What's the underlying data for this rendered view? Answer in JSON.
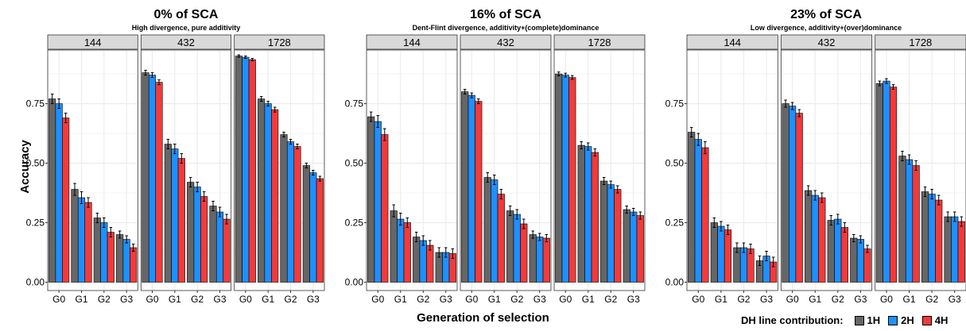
{
  "chart_data": [
    {
      "type": "bar",
      "title": "0% of SCA",
      "subtitle": "High divergence, pure additivity",
      "facets": [
        {
          "label": "144",
          "categories": [
            "G0",
            "G1",
            "G2",
            "G3"
          ],
          "series": [
            {
              "name": "1H",
              "values": [
                0.77,
                0.39,
                0.27,
                0.2
              ],
              "errors": [
                0.02,
                0.025,
                0.02,
                0.015
              ]
            },
            {
              "name": "2H",
              "values": [
                0.75,
                0.355,
                0.25,
                0.18
              ],
              "errors": [
                0.02,
                0.025,
                0.02,
                0.015
              ]
            },
            {
              "name": "4H",
              "values": [
                0.69,
                0.335,
                0.21,
                0.145
              ],
              "errors": [
                0.02,
                0.02,
                0.02,
                0.015
              ]
            }
          ]
        },
        {
          "label": "432",
          "categories": [
            "G0",
            "G1",
            "G2",
            "G3"
          ],
          "series": [
            {
              "name": "1H",
              "values": [
                0.88,
                0.58,
                0.42,
                0.32
              ],
              "errors": [
                0.01,
                0.02,
                0.02,
                0.02
              ]
            },
            {
              "name": "2H",
              "values": [
                0.87,
                0.56,
                0.4,
                0.295
              ],
              "errors": [
                0.01,
                0.02,
                0.02,
                0.02
              ]
            },
            {
              "name": "4H",
              "values": [
                0.84,
                0.52,
                0.36,
                0.265
              ],
              "errors": [
                0.01,
                0.02,
                0.02,
                0.02
              ]
            }
          ]
        },
        {
          "label": "1728",
          "categories": [
            "G0",
            "G1",
            "G2",
            "G3"
          ],
          "series": [
            {
              "name": "1H",
              "values": [
                0.95,
                0.77,
                0.62,
                0.49
              ],
              "errors": [
                0.005,
                0.01,
                0.01,
                0.01
              ]
            },
            {
              "name": "2H",
              "values": [
                0.945,
                0.75,
                0.59,
                0.46
              ],
              "errors": [
                0.005,
                0.01,
                0.01,
                0.01
              ]
            },
            {
              "name": "4H",
              "values": [
                0.935,
                0.725,
                0.57,
                0.435
              ],
              "errors": [
                0.005,
                0.01,
                0.01,
                0.01
              ]
            }
          ]
        }
      ]
    },
    {
      "type": "bar",
      "title": "16% of SCA",
      "subtitle": "Dent-Flint divergence, additivity+(complete)dominance",
      "facets": [
        {
          "label": "144",
          "categories": [
            "G0",
            "G1",
            "G2",
            "G3"
          ],
          "series": [
            {
              "name": "1H",
              "values": [
                0.695,
                0.3,
                0.19,
                0.125
              ],
              "errors": [
                0.02,
                0.025,
                0.02,
                0.02
              ]
            },
            {
              "name": "2H",
              "values": [
                0.675,
                0.265,
                0.175,
                0.125
              ],
              "errors": [
                0.025,
                0.025,
                0.02,
                0.02
              ]
            },
            {
              "name": "4H",
              "values": [
                0.62,
                0.25,
                0.155,
                0.12
              ],
              "errors": [
                0.025,
                0.02,
                0.02,
                0.02
              ]
            }
          ]
        },
        {
          "label": "432",
          "categories": [
            "G0",
            "G1",
            "G2",
            "G3"
          ],
          "series": [
            {
              "name": "1H",
              "values": [
                0.8,
                0.44,
                0.3,
                0.2
              ],
              "errors": [
                0.01,
                0.02,
                0.02,
                0.015
              ]
            },
            {
              "name": "2H",
              "values": [
                0.785,
                0.43,
                0.285,
                0.19
              ],
              "errors": [
                0.01,
                0.02,
                0.02,
                0.015
              ]
            },
            {
              "name": "4H",
              "values": [
                0.76,
                0.37,
                0.245,
                0.185
              ],
              "errors": [
                0.01,
                0.02,
                0.02,
                0.015
              ]
            }
          ]
        },
        {
          "label": "1728",
          "categories": [
            "G0",
            "G1",
            "G2",
            "G3"
          ],
          "series": [
            {
              "name": "1H",
              "values": [
                0.875,
                0.575,
                0.425,
                0.305
              ],
              "errors": [
                0.008,
                0.015,
                0.015,
                0.015
              ]
            },
            {
              "name": "2H",
              "values": [
                0.87,
                0.57,
                0.41,
                0.295
              ],
              "errors": [
                0.008,
                0.015,
                0.015,
                0.015
              ]
            },
            {
              "name": "4H",
              "values": [
                0.86,
                0.545,
                0.39,
                0.28
              ],
              "errors": [
                0.008,
                0.015,
                0.015,
                0.015
              ]
            }
          ]
        }
      ]
    },
    {
      "type": "bar",
      "title": "23% of SCA",
      "subtitle": "Low divergence, additivity+(over)dominance",
      "facets": [
        {
          "label": "144",
          "categories": [
            "G0",
            "G1",
            "G2",
            "G3"
          ],
          "series": [
            {
              "name": "1H",
              "values": [
                0.63,
                0.25,
                0.145,
                0.09
              ],
              "errors": [
                0.02,
                0.02,
                0.02,
                0.02
              ]
            },
            {
              "name": "2H",
              "values": [
                0.6,
                0.235,
                0.145,
                0.11
              ],
              "errors": [
                0.025,
                0.02,
                0.02,
                0.02
              ]
            },
            {
              "name": "4H",
              "values": [
                0.565,
                0.22,
                0.14,
                0.085
              ],
              "errors": [
                0.025,
                0.02,
                0.02,
                0.02
              ]
            }
          ]
        },
        {
          "label": "432",
          "categories": [
            "G0",
            "G1",
            "G2",
            "G3"
          ],
          "series": [
            {
              "name": "1H",
              "values": [
                0.75,
                0.385,
                0.26,
                0.185
              ],
              "errors": [
                0.015,
                0.02,
                0.02,
                0.015
              ]
            },
            {
              "name": "2H",
              "values": [
                0.74,
                0.365,
                0.265,
                0.18
              ],
              "errors": [
                0.015,
                0.02,
                0.02,
                0.015
              ]
            },
            {
              "name": "4H",
              "values": [
                0.71,
                0.355,
                0.23,
                0.14
              ],
              "errors": [
                0.015,
                0.02,
                0.02,
                0.015
              ]
            }
          ]
        },
        {
          "label": "1728",
          "categories": [
            "G0",
            "G1",
            "G2",
            "G3"
          ],
          "series": [
            {
              "name": "1H",
              "values": [
                0.835,
                0.53,
                0.38,
                0.275
              ],
              "errors": [
                0.01,
                0.02,
                0.02,
                0.02
              ]
            },
            {
              "name": "2H",
              "values": [
                0.845,
                0.515,
                0.37,
                0.275
              ],
              "errors": [
                0.01,
                0.02,
                0.02,
                0.02
              ]
            },
            {
              "name": "4H",
              "values": [
                0.82,
                0.49,
                0.345,
                0.255
              ],
              "errors": [
                0.01,
                0.02,
                0.02,
                0.02
              ]
            }
          ]
        }
      ]
    }
  ],
  "axes": {
    "xlabel": "Generation of selection",
    "ylabel": "Accuracy",
    "ylim": [
      0,
      1.0
    ],
    "yticks": [
      0.0,
      0.25,
      0.5,
      0.75
    ],
    "ytick_labels": [
      "0.00",
      "0.25",
      "0.50",
      "0.75"
    ],
    "grid": true
  },
  "legend": {
    "title": "DH line contribution:",
    "position": "bottom-right",
    "items": [
      {
        "label": "1H",
        "color": "#666666"
      },
      {
        "label": "2H",
        "color": "#1E90FF"
      },
      {
        "label": "4H",
        "color": "#F23A3A"
      }
    ]
  },
  "colors": {
    "1H": "#666666",
    "2H": "#1E90FF",
    "4H": "#F23A3A",
    "strip_fill": "#D9D9D9",
    "grid": "#EBEBEB"
  }
}
